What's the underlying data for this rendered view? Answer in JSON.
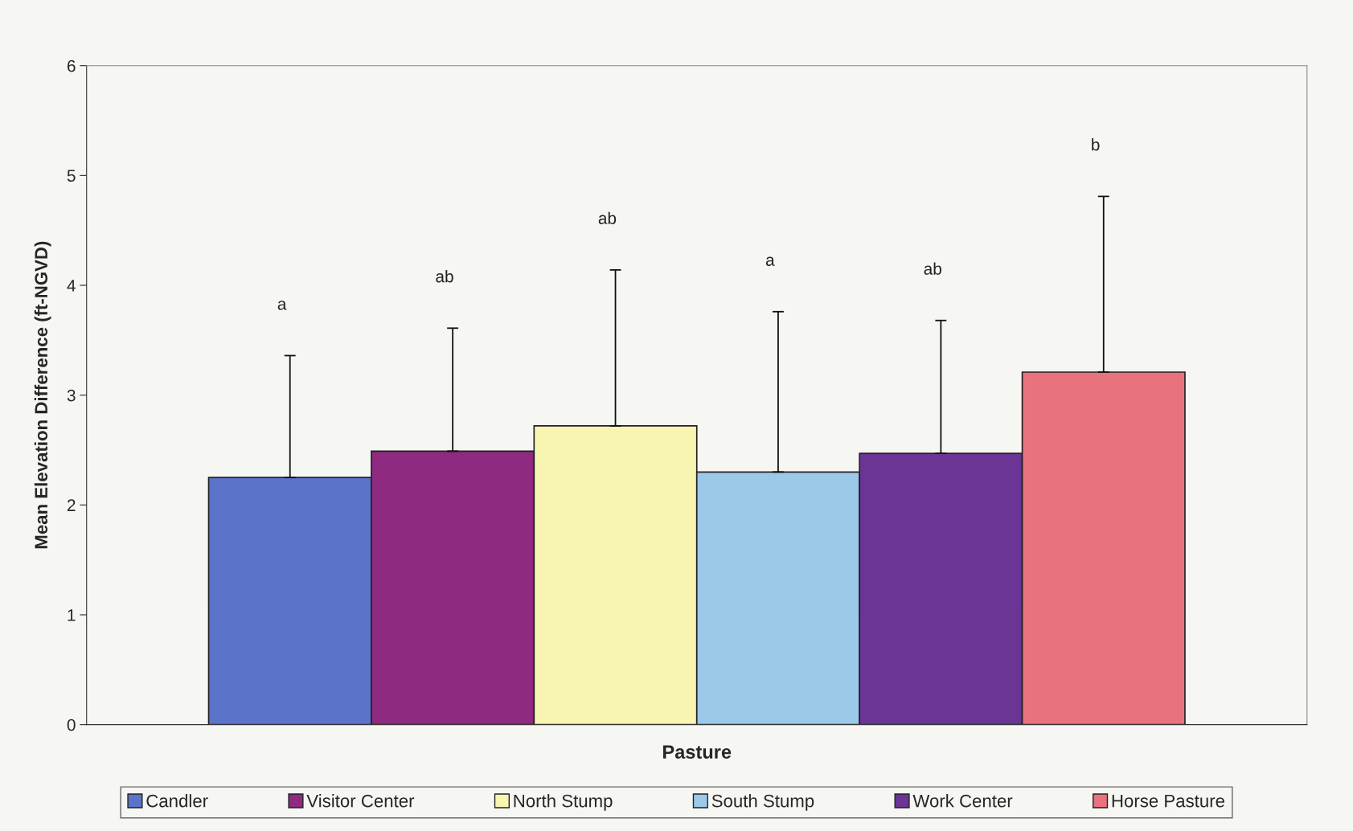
{
  "chart_data": {
    "type": "bar",
    "xlabel": "Pasture",
    "ylabel": "Mean Elevation Difference (ft-NGVD)",
    "categories": [
      null
    ],
    "series": [
      {
        "name": "Candler",
        "color": "#5b73c8",
        "values": [
          2.25
        ],
        "errors": [
          [
            2.25,
            3.36
          ]
        ]
      },
      {
        "name": "Visitor Center",
        "color": "#8e2a80",
        "values": [
          2.49
        ],
        "errors": [
          [
            2.49,
            3.61
          ]
        ]
      },
      {
        "name": "North Stump",
        "color": "#f7f5b0",
        "values": [
          2.72
        ],
        "errors": [
          [
            2.72,
            4.14
          ]
        ]
      },
      {
        "name": "South Stump",
        "color": "#9cc8ea",
        "values": [
          2.3
        ],
        "errors": [
          [
            2.3,
            3.76
          ]
        ]
      },
      {
        "name": "Work Center",
        "color": "#6a3595",
        "values": [
          2.47
        ],
        "errors": [
          [
            2.47,
            3.68
          ]
        ]
      },
      {
        "name": "Horse Pasture",
        "color": "#e8737f",
        "values": [
          3.21
        ],
        "errors": [
          [
            3.21,
            4.81
          ]
        ]
      }
    ],
    "annotations": [
      "a",
      "ab",
      "ab",
      "a",
      "ab",
      "b"
    ],
    "ylim": [
      0,
      6
    ],
    "yticks": [
      0,
      1,
      2,
      3,
      4,
      5,
      6
    ],
    "grid": false,
    "legend": "bottom",
    "tick_labels": "y"
  }
}
